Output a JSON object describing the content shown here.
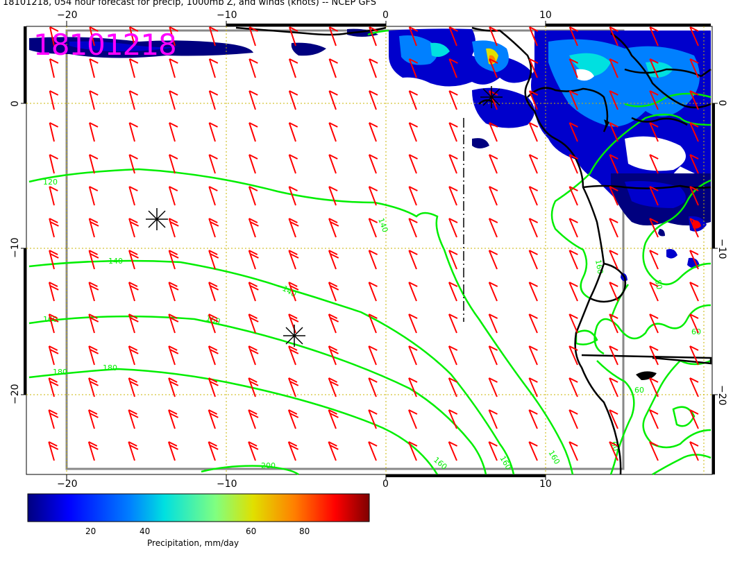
{
  "title": "18101218, 054 hour forecast for precip, 1000mb Z, and winds (knots) -- NCEP GFS",
  "stamp": "18101218",
  "axes": {
    "x_ticks": [
      "−20",
      "−10",
      "0",
      "10"
    ],
    "y_ticks": [
      "0",
      "−10",
      "−20"
    ]
  },
  "contours": {
    "labels": [
      "120",
      "140",
      "140",
      "140",
      "160",
      "160",
      "160",
      "180",
      "180",
      "200",
      "160",
      "160",
      "160",
      "60",
      "60",
      "60",
      "80"
    ]
  },
  "colorbar": {
    "ticks": [
      "20",
      "40",
      "60",
      "80"
    ],
    "title": "Precipitation, mm/day",
    "colors": [
      "#00007f",
      "#0000ff",
      "#0080ff",
      "#00e0e0",
      "#80ff80",
      "#e0e000",
      "#ff8000",
      "#ff0000",
      "#7f0000"
    ]
  },
  "colors": {
    "contour": "#00ee00",
    "wind": "#ff0000",
    "coast": "#000000",
    "stamp": "#ff00ff"
  }
}
